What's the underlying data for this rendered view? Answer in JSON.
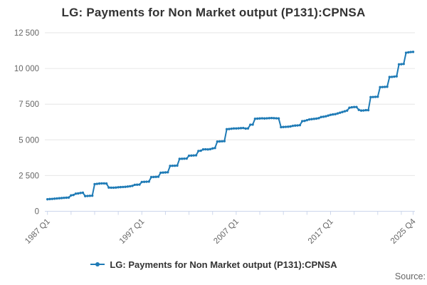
{
  "title": "LG: Payments for Non Market output (P131):CPNSA",
  "legend": {
    "label": "LG: Payments for Non Market output (P131):CPNSA"
  },
  "source_label": "Source:",
  "colors": {
    "series": "#1f7bb6",
    "grid": "#e6e6e6",
    "axis": "#ccd6eb",
    "label_text": "#666666",
    "dark_text": "#333333",
    "background": "#ffffff"
  },
  "chart_data": {
    "type": "line",
    "title": "LG: Payments for Non Market output (P131):CPNSA",
    "xlabel": "",
    "ylabel": "",
    "ylim": [
      0,
      12500
    ],
    "grid": "horizontal",
    "legend_position": "bottom",
    "y_ticks": [
      0,
      2500,
      5000,
      7500,
      10000,
      12500
    ],
    "y_tick_labels": [
      "0",
      "2 500",
      "5 000",
      "7 500",
      "10 000",
      "12 500"
    ],
    "x_minor_tick_step": 10,
    "x_labeled_ticks": [
      {
        "index": 0,
        "label": "1987 Q1"
      },
      {
        "index": 40,
        "label": "1997 Q1"
      },
      {
        "index": 80,
        "label": "2007 Q1"
      },
      {
        "index": 120,
        "label": "2017 Q1"
      },
      {
        "index": 155,
        "label": "2025 Q4"
      }
    ],
    "categories": [
      "1987 Q1",
      "1987 Q2",
      "1987 Q3",
      "1987 Q4",
      "1988 Q1",
      "1988 Q2",
      "1988 Q3",
      "1988 Q4",
      "1989 Q1",
      "1989 Q2",
      "1989 Q3",
      "1989 Q4",
      "1990 Q1",
      "1990 Q2",
      "1990 Q3",
      "1990 Q4",
      "1991 Q1",
      "1991 Q2",
      "1991 Q3",
      "1991 Q4",
      "1992 Q1",
      "1992 Q2",
      "1992 Q3",
      "1992 Q4",
      "1993 Q1",
      "1993 Q2",
      "1993 Q3",
      "1993 Q4",
      "1994 Q1",
      "1994 Q2",
      "1994 Q3",
      "1994 Q4",
      "1995 Q1",
      "1995 Q2",
      "1995 Q3",
      "1995 Q4",
      "1996 Q1",
      "1996 Q2",
      "1996 Q3",
      "1996 Q4",
      "1997 Q1",
      "1997 Q2",
      "1997 Q3",
      "1997 Q4",
      "1998 Q1",
      "1998 Q2",
      "1998 Q3",
      "1998 Q4",
      "1999 Q1",
      "1999 Q2",
      "1999 Q3",
      "1999 Q4",
      "2000 Q1",
      "2000 Q2",
      "2000 Q3",
      "2000 Q4",
      "2001 Q1",
      "2001 Q2",
      "2001 Q3",
      "2001 Q4",
      "2002 Q1",
      "2002 Q2",
      "2002 Q3",
      "2002 Q4",
      "2003 Q1",
      "2003 Q2",
      "2003 Q3",
      "2003 Q4",
      "2004 Q1",
      "2004 Q2",
      "2004 Q3",
      "2004 Q4",
      "2005 Q1",
      "2005 Q2",
      "2005 Q3",
      "2005 Q4",
      "2006 Q1",
      "2006 Q2",
      "2006 Q3",
      "2006 Q4",
      "2007 Q1",
      "2007 Q2",
      "2007 Q3",
      "2007 Q4",
      "2008 Q1",
      "2008 Q2",
      "2008 Q3",
      "2008 Q4",
      "2009 Q1",
      "2009 Q2",
      "2009 Q3",
      "2009 Q4",
      "2010 Q1",
      "2010 Q2",
      "2010 Q3",
      "2010 Q4",
      "2011 Q1",
      "2011 Q2",
      "2011 Q3",
      "2011 Q4",
      "2012 Q1",
      "2012 Q2",
      "2012 Q3",
      "2012 Q4",
      "2013 Q1",
      "2013 Q2",
      "2013 Q3",
      "2013 Q4",
      "2014 Q1",
      "2014 Q2",
      "2014 Q3",
      "2014 Q4",
      "2015 Q1",
      "2015 Q2",
      "2015 Q3",
      "2015 Q4",
      "2016 Q1",
      "2016 Q2",
      "2016 Q3",
      "2016 Q4",
      "2017 Q1",
      "2017 Q2",
      "2017 Q3",
      "2017 Q4",
      "2018 Q1",
      "2018 Q2",
      "2018 Q3",
      "2018 Q4",
      "2019 Q1",
      "2019 Q2",
      "2019 Q3",
      "2019 Q4",
      "2020 Q1",
      "2020 Q2",
      "2020 Q3",
      "2020 Q4",
      "2021 Q1",
      "2021 Q2",
      "2021 Q3",
      "2021 Q4",
      "2022 Q1",
      "2022 Q2",
      "2022 Q3",
      "2022 Q4",
      "2023 Q1",
      "2023 Q2",
      "2023 Q3",
      "2023 Q4",
      "2024 Q1",
      "2024 Q2",
      "2024 Q3",
      "2024 Q4",
      "2025 Q1",
      "2025 Q2",
      "2025 Q3",
      "2025 Q4"
    ],
    "values": [
      840,
      855,
      865,
      880,
      895,
      910,
      925,
      940,
      950,
      960,
      1110,
      1140,
      1230,
      1250,
      1280,
      1300,
      1060,
      1070,
      1080,
      1090,
      1900,
      1920,
      1940,
      1950,
      1950,
      1940,
      1660,
      1650,
      1650,
      1660,
      1680,
      1690,
      1700,
      1710,
      1730,
      1750,
      1780,
      1850,
      1860,
      1870,
      2050,
      2060,
      2070,
      2080,
      2390,
      2400,
      2410,
      2420,
      2700,
      2710,
      2720,
      2730,
      3175,
      3185,
      3190,
      3200,
      3670,
      3675,
      3685,
      3690,
      3890,
      3900,
      3910,
      3920,
      4220,
      4240,
      4330,
      4340,
      4330,
      4350,
      4400,
      4430,
      4880,
      4890,
      4900,
      4910,
      5750,
      5760,
      5780,
      5800,
      5800,
      5810,
      5820,
      5830,
      5790,
      5800,
      6060,
      6070,
      6480,
      6490,
      6500,
      6510,
      6500,
      6510,
      6520,
      6530,
      6520,
      6510,
      6500,
      5890,
      5900,
      5910,
      5920,
      5940,
      5980,
      6000,
      6010,
      6030,
      6310,
      6330,
      6380,
      6430,
      6450,
      6470,
      6490,
      6520,
      6600,
      6620,
      6650,
      6700,
      6750,
      6780,
      6800,
      6850,
      6900,
      6950,
      7000,
      7050,
      7250,
      7280,
      7300,
      7300,
      7100,
      7050,
      7060,
      7080,
      7080,
      7990,
      8000,
      8010,
      8020,
      8690,
      8700,
      8710,
      8720,
      9400,
      9410,
      9430,
      9450,
      10290,
      10300,
      10320,
      11100,
      11130,
      11150,
      11160
    ]
  }
}
